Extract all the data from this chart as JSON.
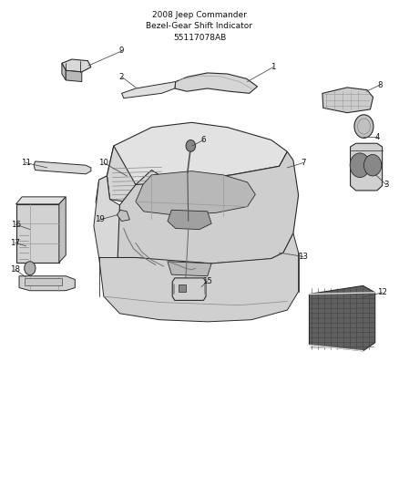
{
  "title": "2008 Jeep Commander\nBezel-Gear Shift Indicator\n55117078AB",
  "title_fontsize": 6.5,
  "bg_color": "#ffffff",
  "line_color": "#2a2a2a",
  "label_positions": {
    "1": [
      0.685,
      0.862,
      0.62,
      0.84
    ],
    "2": [
      0.37,
      0.83,
      0.37,
      0.81
    ],
    "3": [
      0.97,
      0.53,
      0.94,
      0.548
    ],
    "4": [
      0.945,
      0.64,
      0.92,
      0.648
    ],
    "6": [
      0.49,
      0.718,
      0.48,
      0.7
    ],
    "7": [
      0.755,
      0.668,
      0.72,
      0.65
    ],
    "8": [
      0.93,
      0.82,
      0.9,
      0.8
    ],
    "9": [
      0.298,
      0.888,
      0.258,
      0.858
    ],
    "10": [
      0.268,
      0.668,
      0.318,
      0.638
    ],
    "11": [
      0.075,
      0.66,
      0.125,
      0.648
    ],
    "12": [
      0.92,
      0.32,
      0.88,
      0.352
    ],
    "13": [
      0.745,
      0.468,
      0.7,
      0.475
    ],
    "15": [
      0.49,
      0.38,
      0.472,
      0.408
    ],
    "16": [
      0.065,
      0.53,
      0.11,
      0.52
    ],
    "17": [
      0.065,
      0.49,
      0.095,
      0.49
    ],
    "18": [
      0.065,
      0.405,
      0.098,
      0.412
    ],
    "19": [
      0.268,
      0.542,
      0.295,
      0.558
    ]
  }
}
